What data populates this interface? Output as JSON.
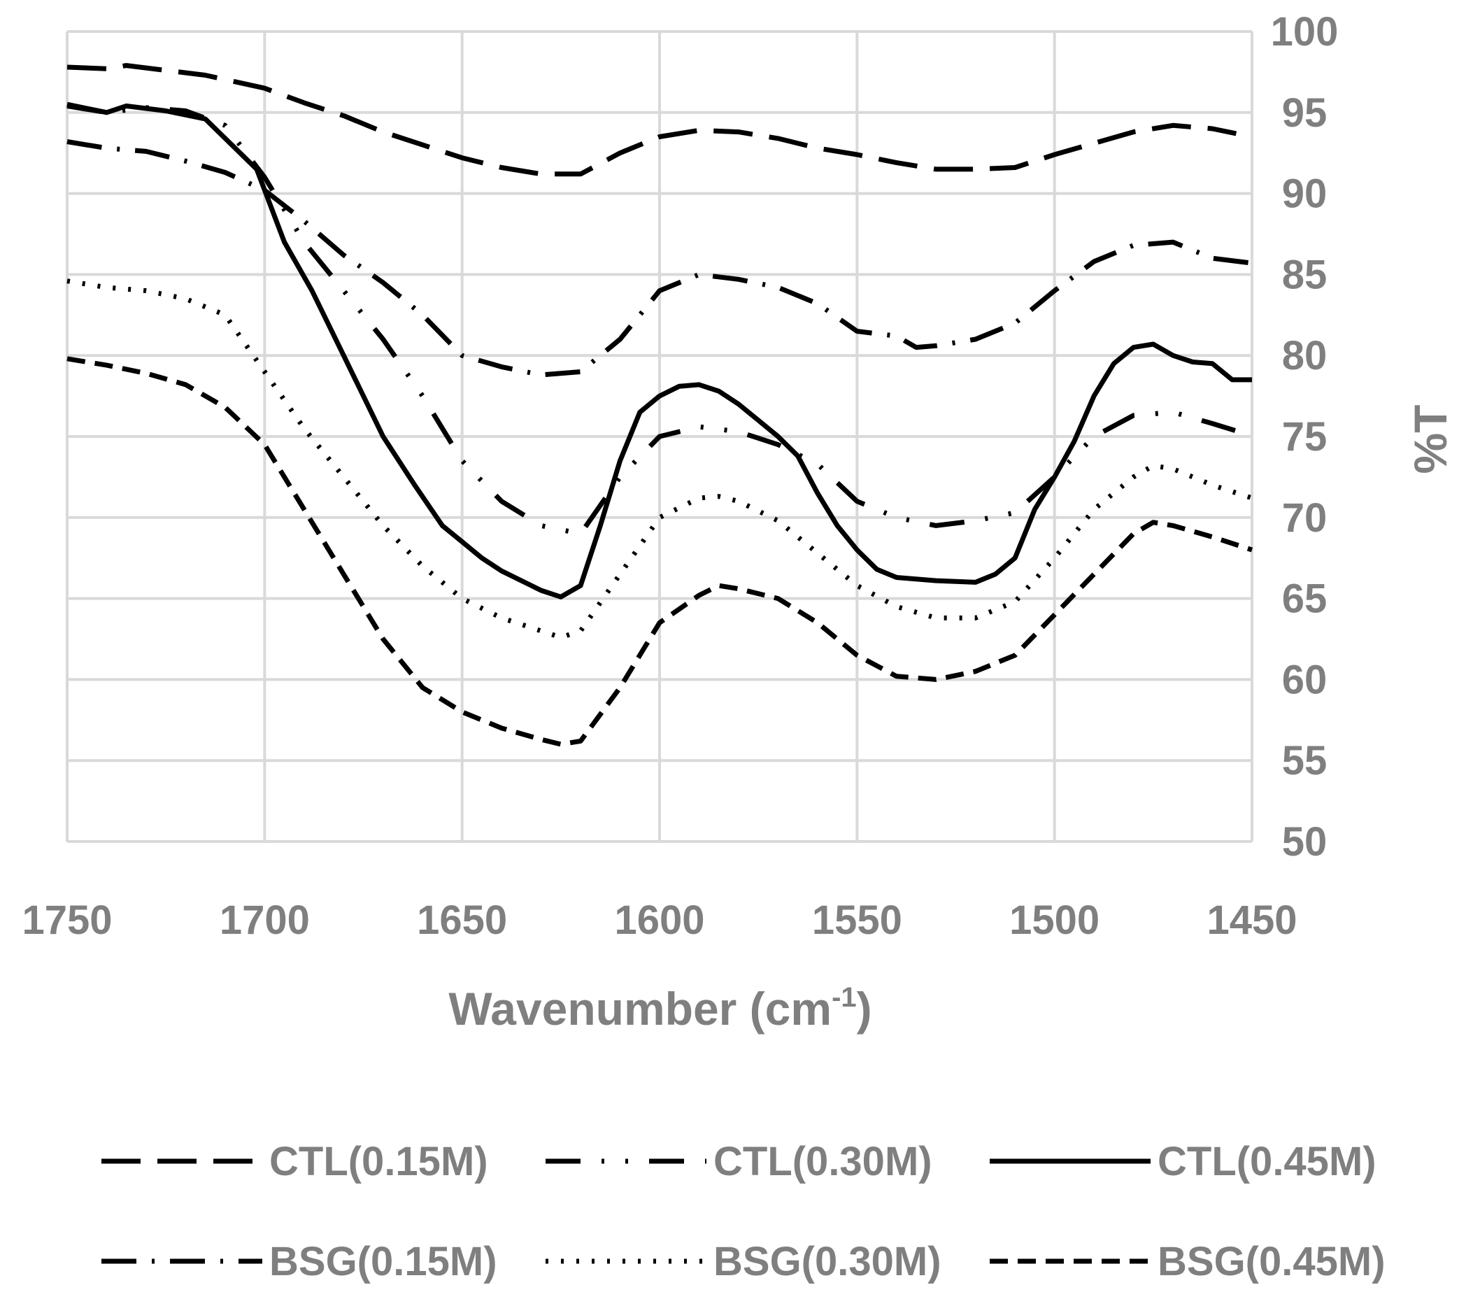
{
  "chart_data": {
    "type": "line",
    "title": "",
    "xlabel": "Wavenumber (cm",
    "xlabel_sup": "-1",
    "xlabel_suffix": ")",
    "ylabel": "%T",
    "xlim": [
      1750,
      1450
    ],
    "ylim": [
      50,
      100
    ],
    "x_ticks": [
      "1750",
      "1700",
      "1650",
      "1600",
      "1550",
      "1500",
      "1450"
    ],
    "y_ticks": [
      "100",
      "95",
      "90",
      "85",
      "80",
      "75",
      "70",
      "65",
      "60",
      "55",
      "50"
    ],
    "x_tick_values": [
      1750,
      1700,
      1650,
      1600,
      1550,
      1500,
      1450
    ],
    "y_tick_values": [
      100,
      95,
      90,
      85,
      80,
      75,
      70,
      65,
      60,
      55,
      50
    ],
    "grid": true,
    "y_axis_position": "right",
    "legend_position": "bottom",
    "series": [
      {
        "name": "CTL(0.15M)",
        "dash": "long-dash",
        "x": [
          1750,
          1740,
          1735,
          1725,
          1715,
          1700,
          1690,
          1680,
          1670,
          1660,
          1650,
          1640,
          1630,
          1620,
          1610,
          1600,
          1590,
          1580,
          1570,
          1560,
          1550,
          1540,
          1530,
          1520,
          1510,
          1500,
          1490,
          1480,
          1470,
          1460,
          1454
        ],
        "y": [
          97.8,
          97.7,
          97.9,
          97.6,
          97.3,
          96.5,
          95.6,
          94.8,
          93.8,
          93.0,
          92.2,
          91.6,
          91.2,
          91.2,
          92.5,
          93.5,
          93.9,
          93.8,
          93.4,
          92.8,
          92.4,
          91.9,
          91.5,
          91.5,
          91.6,
          92.4,
          93.1,
          93.8,
          94.2,
          94.0,
          93.7
        ]
      },
      {
        "name": "CTL(0.30M)",
        "dash": "dash-dot-dot",
        "x": [
          1750,
          1740,
          1730,
          1720,
          1710,
          1700,
          1690,
          1680,
          1670,
          1660,
          1650,
          1640,
          1630,
          1620,
          1610,
          1600,
          1590,
          1580,
          1570,
          1560,
          1550,
          1540,
          1530,
          1520,
          1510,
          1500,
          1490,
          1480,
          1470,
          1460,
          1452
        ],
        "y": [
          95.4,
          95.0,
          95.3,
          95.1,
          94.2,
          91.0,
          87.0,
          84.0,
          81.0,
          77.5,
          73.5,
          71.0,
          69.5,
          69.0,
          72.5,
          75.0,
          75.6,
          75.3,
          74.5,
          73.3,
          71.0,
          70.0,
          69.5,
          69.8,
          70.3,
          72.5,
          75.0,
          76.3,
          76.5,
          75.8,
          75.2
        ]
      },
      {
        "name": "CTL(0.45M)",
        "dash": "solid",
        "x": [
          1750,
          1740,
          1735,
          1725,
          1715,
          1702,
          1695,
          1688,
          1682,
          1676,
          1670,
          1662,
          1655,
          1650,
          1645,
          1640,
          1630,
          1625,
          1620,
          1615,
          1610,
          1605,
          1600,
          1595,
          1590,
          1585,
          1580,
          1575,
          1570,
          1565,
          1560,
          1555,
          1550,
          1545,
          1540,
          1530,
          1520,
          1515,
          1510,
          1505,
          1500,
          1495,
          1490,
          1485,
          1480,
          1475,
          1470,
          1465,
          1460,
          1455,
          1450
        ],
        "y": [
          95.5,
          95.0,
          95.4,
          95.1,
          94.6,
          91.5,
          87.0,
          84.0,
          81.0,
          78.0,
          75.0,
          72.0,
          69.5,
          68.5,
          67.5,
          66.7,
          65.5,
          65.1,
          65.8,
          69.5,
          73.5,
          76.5,
          77.5,
          78.1,
          78.2,
          77.8,
          77.0,
          76.0,
          75.0,
          73.8,
          71.5,
          69.5,
          68.0,
          66.8,
          66.3,
          66.1,
          66.0,
          66.5,
          67.5,
          70.5,
          72.5,
          74.7,
          77.5,
          79.5,
          80.5,
          80.7,
          80.0,
          79.6,
          79.5,
          78.5,
          78.5
        ]
      },
      {
        "name": "BSG(0.15M)",
        "dash": "dash-dot",
        "x": [
          1750,
          1740,
          1730,
          1720,
          1710,
          1700,
          1690,
          1680,
          1670,
          1660,
          1650,
          1640,
          1630,
          1620,
          1610,
          1600,
          1590,
          1580,
          1570,
          1560,
          1550,
          1540,
          1535,
          1530,
          1520,
          1510,
          1500,
          1490,
          1480,
          1470,
          1460,
          1450
        ],
        "y": [
          93.2,
          92.8,
          92.6,
          92.0,
          91.3,
          90.2,
          88.3,
          86.2,
          84.5,
          82.5,
          80.0,
          79.3,
          78.8,
          79.0,
          81.0,
          84.0,
          85.0,
          84.7,
          84.2,
          83.2,
          81.5,
          81.2,
          80.5,
          80.6,
          81.0,
          82.0,
          84.0,
          85.8,
          86.8,
          87.0,
          86.0,
          85.7
        ]
      },
      {
        "name": "BSG(0.30M)",
        "dash": "dotted",
        "x": [
          1750,
          1740,
          1730,
          1720,
          1710,
          1700,
          1690,
          1680,
          1670,
          1660,
          1650,
          1640,
          1630,
          1625,
          1620,
          1610,
          1600,
          1590,
          1585,
          1580,
          1570,
          1560,
          1550,
          1540,
          1530,
          1520,
          1510,
          1500,
          1490,
          1480,
          1475,
          1470,
          1460,
          1450
        ],
        "y": [
          84.6,
          84.2,
          84.0,
          83.5,
          82.5,
          79.0,
          75.5,
          72.5,
          69.5,
          67.0,
          65.0,
          63.8,
          63.0,
          62.6,
          63.0,
          66.5,
          70.0,
          71.2,
          71.3,
          71.0,
          69.8,
          67.8,
          65.8,
          64.5,
          63.8,
          63.8,
          64.8,
          67.5,
          70.5,
          72.5,
          73.2,
          73.0,
          72.0,
          71.2
        ]
      },
      {
        "name": "BSG(0.45M)",
        "dash": "short-dash",
        "x": [
          1750,
          1740,
          1730,
          1720,
          1710,
          1700,
          1690,
          1680,
          1670,
          1660,
          1650,
          1640,
          1630,
          1625,
          1620,
          1610,
          1600,
          1590,
          1585,
          1580,
          1570,
          1560,
          1550,
          1540,
          1530,
          1520,
          1510,
          1500,
          1490,
          1480,
          1475,
          1470,
          1460,
          1450
        ],
        "y": [
          79.8,
          79.4,
          78.9,
          78.2,
          76.8,
          74.5,
          70.5,
          66.5,
          62.5,
          59.5,
          58.0,
          57.0,
          56.3,
          56.0,
          56.2,
          59.5,
          63.5,
          65.2,
          65.8,
          65.6,
          65.0,
          63.5,
          61.5,
          60.2,
          60.0,
          60.5,
          61.5,
          64.0,
          66.5,
          69.0,
          69.7,
          69.5,
          68.8,
          68.0
        ]
      }
    ]
  },
  "legend": {
    "items": [
      {
        "label": "CTL(0.15M)"
      },
      {
        "label": "CTL(0.30M)"
      },
      {
        "label": "CTL(0.45M)"
      },
      {
        "label": "BSG(0.15M)"
      },
      {
        "label": "BSG(0.30M)"
      },
      {
        "label": "BSG(0.45M)"
      }
    ]
  }
}
